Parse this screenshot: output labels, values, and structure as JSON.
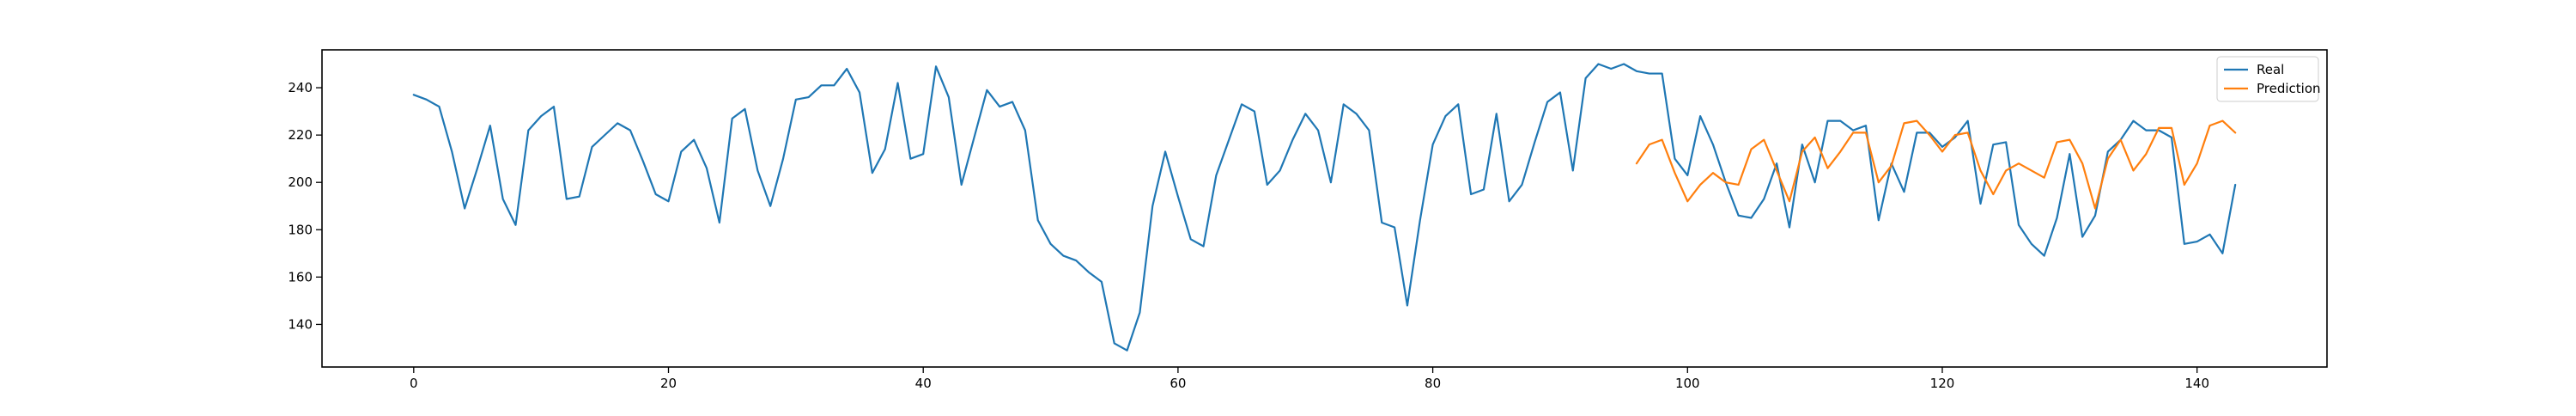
{
  "chart_data": {
    "type": "line",
    "title": "",
    "xlabel": "",
    "ylabel": "",
    "xlim": [
      -7.2,
      150.2
    ],
    "ylim": [
      122,
      256
    ],
    "grid": false,
    "legend_position": "top-right",
    "x_ticks": [
      0,
      20,
      40,
      60,
      80,
      100,
      120,
      140
    ],
    "y_ticks": [
      140,
      160,
      180,
      200,
      220,
      240
    ],
    "series": [
      {
        "name": "Real",
        "color": "#1f77b4",
        "x_start": 0,
        "values": [
          237,
          235,
          232,
          213,
          189,
          206,
          224,
          193,
          182,
          222,
          228,
          232,
          193,
          194,
          215,
          220,
          225,
          222,
          209,
          195,
          192,
          213,
          218,
          206,
          183,
          227,
          231,
          205,
          190,
          210,
          235,
          236,
          241,
          241,
          248,
          238,
          204,
          214,
          242,
          210,
          212,
          249,
          236,
          199,
          219,
          239,
          232,
          234,
          222,
          184,
          174,
          169,
          167,
          162,
          158,
          132,
          129,
          145,
          190,
          213,
          194,
          176,
          173,
          203,
          218,
          233,
          230,
          199,
          205,
          218,
          229,
          222,
          200,
          233,
          229,
          222,
          183,
          181,
          148,
          184,
          216,
          228,
          233,
          195,
          197,
          229,
          192,
          199,
          217,
          234,
          238,
          205,
          244,
          250,
          248,
          250,
          247,
          246,
          246,
          210,
          203,
          228,
          216,
          200,
          186,
          185,
          193,
          208,
          181,
          216,
          200,
          226,
          226,
          222,
          224,
          184,
          208,
          196,
          221,
          221,
          215,
          219,
          226,
          191,
          216,
          217,
          182,
          174,
          169,
          185,
          212,
          177,
          186,
          213,
          218,
          226,
          222,
          222,
          219,
          174,
          175,
          178,
          170,
          199
        ]
      },
      {
        "name": "Prediction",
        "color": "#ff7f0e",
        "x_start": 96,
        "values": [
          208,
          216,
          218,
          204,
          192,
          199,
          204,
          200,
          199,
          214,
          218,
          205,
          192,
          213,
          219,
          206,
          213,
          221,
          221,
          200,
          207,
          225,
          226,
          220,
          213,
          220,
          221,
          205,
          195,
          205,
          208,
          205,
          202,
          217,
          218,
          208,
          189,
          210,
          218,
          205,
          212,
          223,
          223,
          199,
          208,
          224,
          226,
          221
        ]
      }
    ]
  }
}
